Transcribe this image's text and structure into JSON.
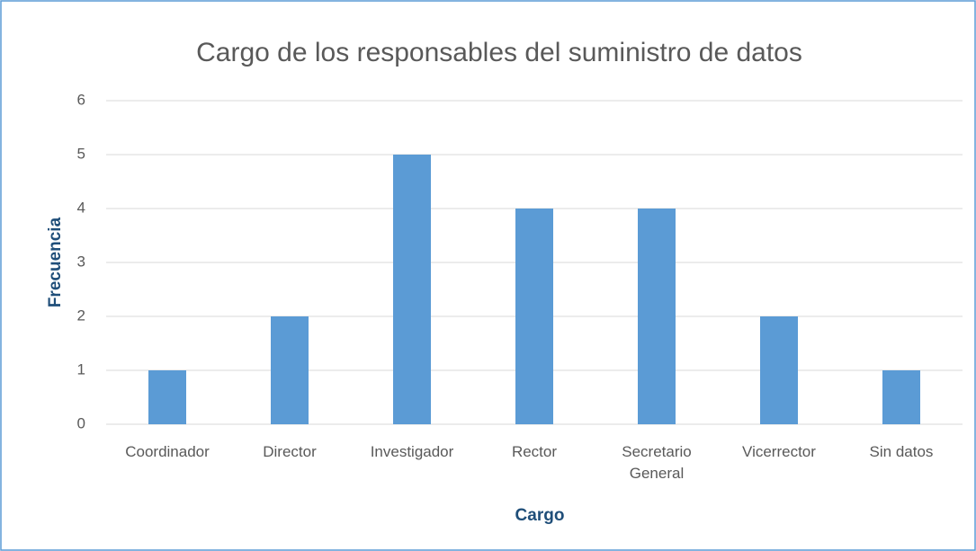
{
  "chart_data": {
    "type": "bar",
    "title": "Cargo de los responsables del suministro de datos",
    "x_label": "Cargo",
    "y_label": "Frecuencia",
    "categories": [
      "Coordinador",
      "Director",
      "Investigador",
      "Rector",
      "Secretario General",
      "Vicerrector",
      "Sin datos"
    ],
    "values": [
      1,
      2,
      5,
      4,
      4,
      2,
      1
    ],
    "color": "#5b9bd5",
    "ylim": [
      0,
      6
    ],
    "yticks": [
      0,
      1,
      2,
      3,
      4,
      5,
      6
    ],
    "grid": true
  }
}
